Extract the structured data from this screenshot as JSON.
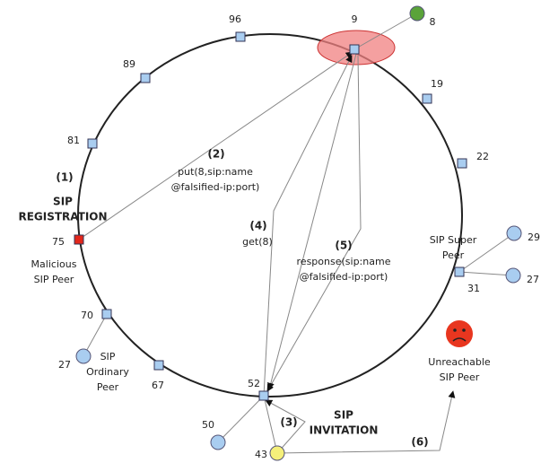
{
  "ring_nodes": [
    "96",
    "89",
    "81",
    "75",
    "70",
    "67",
    "52",
    "31",
    "22",
    "19",
    "9"
  ],
  "peers": [
    "8",
    "29",
    "27",
    "27",
    "50",
    "43"
  ],
  "annotations": {
    "step1": {
      "number": "(1)",
      "lines": [
        "SIP",
        "REGISTRATION"
      ]
    },
    "malicious": [
      "Malicious",
      "SIP Peer"
    ],
    "step2": {
      "number": "(2)",
      "lines": [
        "put(8,sip:name",
        "@falsified-ip:port)"
      ]
    },
    "step4": {
      "number": "(4)",
      "lines": [
        "get(8)"
      ]
    },
    "step5": {
      "number": "(5)",
      "lines": [
        "response(sip:name",
        "@falsified-ip:port)"
      ]
    },
    "super_peer": [
      "SIP Super",
      "Peer"
    ],
    "ordinary_peer": [
      "SIP",
      "Ordinary",
      "Peer"
    ],
    "unreachable": [
      "Unreachable",
      "SIP Peer"
    ],
    "step3": {
      "number": "(3)",
      "lines": [
        "SIP",
        "INVITATION"
      ]
    },
    "step6": {
      "number": "(6)"
    }
  }
}
